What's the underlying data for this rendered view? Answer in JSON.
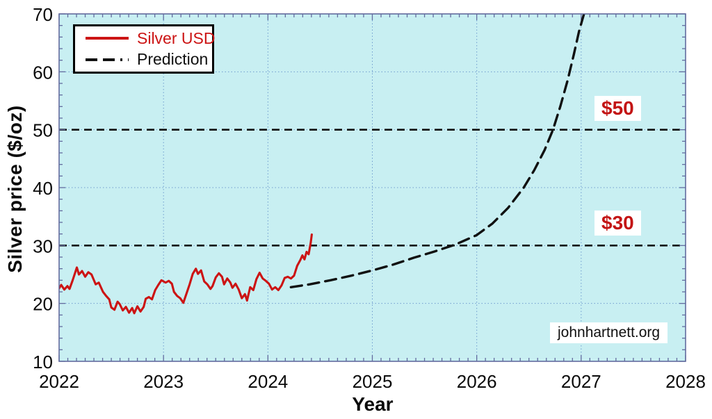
{
  "chart_data": {
    "type": "line",
    "title": "",
    "xlabel": "Year",
    "ylabel": "Silver price ($/oz)",
    "xlim": [
      2022,
      2028
    ],
    "ylim": [
      10,
      70
    ],
    "xticks": [
      "2022",
      "2023",
      "2024",
      "2025",
      "2026",
      "2027",
      "2028"
    ],
    "yticks": [
      "10",
      "20",
      "30",
      "40",
      "50",
      "60",
      "70"
    ],
    "minor_x_step_years": 0.08333,
    "minor_y_step": 2,
    "grid": "dotted major gridlines",
    "legend_position": "top-left",
    "watermark": "johnhartnett.org",
    "reference_lines": [
      {
        "y": 50,
        "label": "$50"
      },
      {
        "y": 30,
        "label": "$30"
      }
    ],
    "series": [
      {
        "name": "Silver USD",
        "color": "#cc1414",
        "line_style": "solid",
        "points": [
          [
            2022.0,
            22.6
          ],
          [
            2022.02,
            23.2
          ],
          [
            2022.05,
            22.4
          ],
          [
            2022.08,
            23.0
          ],
          [
            2022.1,
            22.5
          ],
          [
            2022.13,
            24.0
          ],
          [
            2022.17,
            26.2
          ],
          [
            2022.19,
            25.0
          ],
          [
            2022.22,
            25.6
          ],
          [
            2022.25,
            24.6
          ],
          [
            2022.28,
            25.4
          ],
          [
            2022.31,
            25.0
          ],
          [
            2022.35,
            23.3
          ],
          [
            2022.38,
            23.6
          ],
          [
            2022.42,
            22.0
          ],
          [
            2022.45,
            21.3
          ],
          [
            2022.48,
            20.7
          ],
          [
            2022.5,
            19.3
          ],
          [
            2022.53,
            18.9
          ],
          [
            2022.56,
            20.3
          ],
          [
            2022.58,
            19.9
          ],
          [
            2022.61,
            18.8
          ],
          [
            2022.64,
            19.4
          ],
          [
            2022.67,
            18.4
          ],
          [
            2022.7,
            19.2
          ],
          [
            2022.72,
            18.3
          ],
          [
            2022.75,
            19.5
          ],
          [
            2022.78,
            18.6
          ],
          [
            2022.81,
            19.4
          ],
          [
            2022.83,
            20.8
          ],
          [
            2022.86,
            21.1
          ],
          [
            2022.89,
            20.7
          ],
          [
            2022.92,
            22.3
          ],
          [
            2022.95,
            23.2
          ],
          [
            2022.98,
            24.0
          ],
          [
            2023.02,
            23.6
          ],
          [
            2023.05,
            23.9
          ],
          [
            2023.08,
            23.4
          ],
          [
            2023.1,
            22.0
          ],
          [
            2023.13,
            21.3
          ],
          [
            2023.16,
            20.9
          ],
          [
            2023.19,
            20.1
          ],
          [
            2023.22,
            21.7
          ],
          [
            2023.25,
            23.3
          ],
          [
            2023.28,
            25.1
          ],
          [
            2023.31,
            26.0
          ],
          [
            2023.33,
            25.1
          ],
          [
            2023.36,
            25.7
          ],
          [
            2023.39,
            23.8
          ],
          [
            2023.42,
            23.3
          ],
          [
            2023.45,
            22.5
          ],
          [
            2023.47,
            23.0
          ],
          [
            2023.5,
            24.5
          ],
          [
            2023.53,
            25.2
          ],
          [
            2023.56,
            24.6
          ],
          [
            2023.58,
            23.3
          ],
          [
            2023.61,
            24.3
          ],
          [
            2023.64,
            23.6
          ],
          [
            2023.66,
            22.7
          ],
          [
            2023.69,
            23.4
          ],
          [
            2023.72,
            22.4
          ],
          [
            2023.75,
            20.9
          ],
          [
            2023.78,
            21.6
          ],
          [
            2023.8,
            20.5
          ],
          [
            2023.83,
            22.8
          ],
          [
            2023.86,
            22.3
          ],
          [
            2023.89,
            24.2
          ],
          [
            2023.92,
            25.3
          ],
          [
            2023.95,
            24.3
          ],
          [
            2023.98,
            23.9
          ],
          [
            2024.01,
            23.4
          ],
          [
            2024.04,
            22.4
          ],
          [
            2024.07,
            22.8
          ],
          [
            2024.1,
            22.3
          ],
          [
            2024.13,
            23.1
          ],
          [
            2024.16,
            24.4
          ],
          [
            2024.19,
            24.6
          ],
          [
            2024.22,
            24.3
          ],
          [
            2024.25,
            24.8
          ],
          [
            2024.28,
            26.5
          ],
          [
            2024.31,
            27.5
          ],
          [
            2024.33,
            28.3
          ],
          [
            2024.35,
            27.6
          ],
          [
            2024.37,
            28.9
          ],
          [
            2024.39,
            28.5
          ],
          [
            2024.41,
            30.5
          ],
          [
            2024.42,
            31.9
          ]
        ]
      },
      {
        "name": "Prediction",
        "color": "#111111",
        "line_style": "dashed",
        "points": [
          [
            2024.22,
            22.8
          ],
          [
            2024.4,
            23.3
          ],
          [
            2024.6,
            24.0
          ],
          [
            2024.8,
            24.8
          ],
          [
            2025.0,
            25.7
          ],
          [
            2025.2,
            26.7
          ],
          [
            2025.4,
            27.9
          ],
          [
            2025.6,
            29.0
          ],
          [
            2025.8,
            30.2
          ],
          [
            2026.0,
            31.8
          ],
          [
            2026.15,
            33.8
          ],
          [
            2026.3,
            36.5
          ],
          [
            2026.45,
            40.0
          ],
          [
            2026.55,
            43.0
          ],
          [
            2026.65,
            46.5
          ],
          [
            2026.73,
            50.0
          ],
          [
            2026.8,
            54.0
          ],
          [
            2026.87,
            58.5
          ],
          [
            2026.93,
            63.0
          ],
          [
            2026.98,
            67.0
          ],
          [
            2027.04,
            70.8
          ]
        ]
      }
    ]
  },
  "colors": {
    "silver": "#cc1414",
    "prediction": "#111111",
    "label_red": "#c31414",
    "plot_bg": "#c8eff2",
    "frame": "#636b9e",
    "grid": "#6f9cce",
    "page_bg": "#ffffff",
    "tick_text": "#0a0a0a"
  }
}
